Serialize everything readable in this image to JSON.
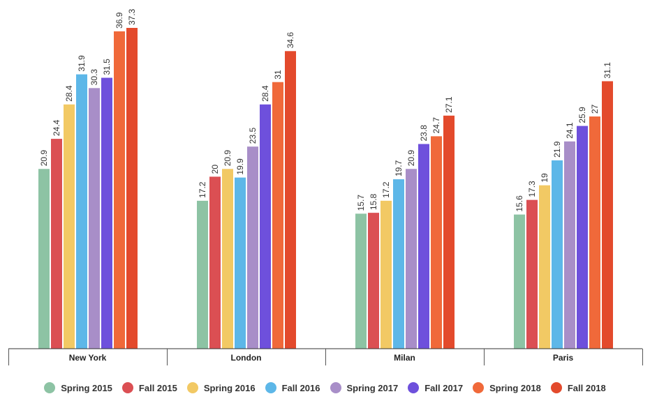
{
  "chart_data": {
    "type": "bar",
    "title": "",
    "xlabel": "",
    "ylabel": "",
    "ylim": [
      0,
      37.3
    ],
    "grid": false,
    "legend_position": "bottom",
    "categories": [
      "New York",
      "London",
      "Milan",
      "Paris"
    ],
    "series": [
      {
        "name": "Spring 2015",
        "color": "#8dc3a4",
        "values": [
          20.9,
          17.2,
          15.7,
          15.6
        ]
      },
      {
        "name": "Fall 2015",
        "color": "#db4f53",
        "values": [
          24.4,
          20,
          15.8,
          17.3
        ]
      },
      {
        "name": "Spring 2016",
        "color": "#f2c964",
        "values": [
          28.4,
          20.9,
          17.2,
          19
        ]
      },
      {
        "name": "Fall 2016",
        "color": "#5db7e8",
        "values": [
          31.9,
          19.9,
          19.7,
          21.9
        ]
      },
      {
        "name": "Spring 2017",
        "color": "#a88ec8",
        "values": [
          30.3,
          23.5,
          20.9,
          24.1
        ]
      },
      {
        "name": "Fall 2017",
        "color": "#6e50dc",
        "values": [
          31.5,
          28.4,
          23.8,
          25.9
        ]
      },
      {
        "name": "Spring 2018",
        "color": "#f0693a",
        "values": [
          36.9,
          31,
          24.7,
          27
        ]
      },
      {
        "name": "Fall 2018",
        "color": "#e34a2c",
        "values": [
          37.3,
          34.6,
          27.1,
          31.1
        ]
      }
    ]
  }
}
